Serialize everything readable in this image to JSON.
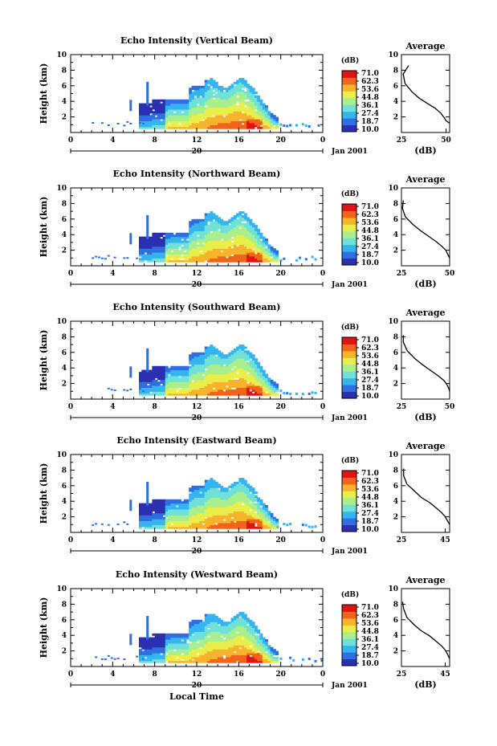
{
  "colorbar": {
    "unit": "(dB)",
    "levels": [
      "71.0",
      "62.3",
      "53.6",
      "44.8",
      "36.1",
      "27.4",
      "18.7",
      "10.0"
    ],
    "colors": [
      "#2b2fb0",
      "#2f6fe0",
      "#35b4ef",
      "#6fe1d8",
      "#a9ef8d",
      "#e9ee4a",
      "#f7b32c",
      "#f2641a",
      "#e01414"
    ]
  },
  "chart_data": [
    {
      "type": "heatmap",
      "title": "Echo Intensity (Vertical Beam)",
      "xlabel": "",
      "ylabel": "Height (km)",
      "xlim": [
        0,
        24
      ],
      "ylim": [
        0,
        10
      ],
      "xticks": [
        "0",
        "4",
        "8",
        "12",
        "16",
        "20",
        "0"
      ],
      "yticks": [
        "2",
        "4",
        "6",
        "8",
        "10"
      ],
      "date_label": "20",
      "date_suffix": "Jan 2001",
      "profile": {
        "title": "Average",
        "xlabel": "(dB)",
        "xlim": [
          25,
          52
        ],
        "xticks": [
          "25",
          "50"
        ],
        "points": [
          [
            29,
            8.6
          ],
          [
            26,
            7.5
          ],
          [
            27,
            6.3
          ],
          [
            31,
            5.2
          ],
          [
            35,
            4.4
          ],
          [
            39,
            3.8
          ],
          [
            44,
            3.1
          ],
          [
            47,
            2.5
          ],
          [
            49,
            1.9
          ],
          [
            50,
            1.5
          ],
          [
            52,
            1.2
          ]
        ]
      }
    },
    {
      "type": "heatmap",
      "title": "Echo Intensity (Northward Beam)",
      "xlabel": "",
      "ylabel": "Height (km)",
      "xlim": [
        0,
        24
      ],
      "ylim": [
        0,
        10
      ],
      "xticks": [
        "0",
        "4",
        "8",
        "12",
        "16",
        "20",
        "0"
      ],
      "yticks": [
        "2",
        "4",
        "6",
        "8",
        "10"
      ],
      "date_label": "20",
      "date_suffix": "Jan 2001",
      "profile": {
        "title": "Average",
        "xlabel": "(dB)",
        "xlim": [
          25,
          50
        ],
        "xticks": [
          "25",
          "50"
        ],
        "points": [
          [
            26,
            8.4
          ],
          [
            25.5,
            7.4
          ],
          [
            27,
            6.3
          ],
          [
            31,
            5.3
          ],
          [
            35,
            4.5
          ],
          [
            39,
            3.8
          ],
          [
            43,
            3.1
          ],
          [
            46,
            2.5
          ],
          [
            48,
            2.0
          ],
          [
            49,
            1.5
          ],
          [
            50,
            1.0
          ]
        ]
      }
    },
    {
      "type": "heatmap",
      "title": "Echo Intensity (Southward Beam)",
      "xlabel": "",
      "ylabel": "Height (km)",
      "xlim": [
        0,
        24
      ],
      "ylim": [
        0,
        10
      ],
      "xticks": [
        "0",
        "4",
        "8",
        "12",
        "16",
        "20",
        "0"
      ],
      "yticks": [
        "2",
        "4",
        "6",
        "8",
        "10"
      ],
      "date_label": "20",
      "date_suffix": "Jan 2001",
      "profile": {
        "title": "Average",
        "xlabel": "(dB)",
        "xlim": [
          25,
          50
        ],
        "xticks": [
          "25",
          "50"
        ],
        "points": [
          [
            26,
            8.2
          ],
          [
            26,
            7.3
          ],
          [
            28,
            6.2
          ],
          [
            32,
            5.2
          ],
          [
            36,
            4.4
          ],
          [
            40,
            3.7
          ],
          [
            44,
            3.0
          ],
          [
            47,
            2.4
          ],
          [
            48.5,
            1.9
          ],
          [
            49.5,
            1.4
          ],
          [
            50,
            1.0
          ]
        ]
      }
    },
    {
      "type": "heatmap",
      "title": "Echo Intensity (Eastward Beam)",
      "xlabel": "",
      "ylabel": "Height (km)",
      "xlim": [
        0,
        24
      ],
      "ylim": [
        0,
        10
      ],
      "xticks": [
        "0",
        "4",
        "8",
        "12",
        "16",
        "20",
        "0"
      ],
      "yticks": [
        "2",
        "4",
        "6",
        "8",
        "10"
      ],
      "date_label": "20",
      "date_suffix": "Jan 2001",
      "profile": {
        "title": "Average",
        "xlabel": "",
        "xlim": [
          25,
          47
        ],
        "xticks": [
          "25",
          "45"
        ],
        "points": [
          [
            26,
            8.2
          ],
          [
            26,
            7.3
          ],
          [
            27.5,
            6.2
          ],
          [
            31,
            5.3
          ],
          [
            34,
            4.5
          ],
          [
            38,
            3.8
          ],
          [
            41,
            3.1
          ],
          [
            43.5,
            2.5
          ],
          [
            45,
            2.0
          ],
          [
            46,
            1.5
          ],
          [
            47,
            1.0
          ]
        ]
      }
    },
    {
      "type": "heatmap",
      "title": "Echo Intensity (Westward Beam)",
      "xlabel": "Local Time",
      "ylabel": "Height (km)",
      "xlim": [
        0,
        24
      ],
      "ylim": [
        0,
        10
      ],
      "xticks": [
        "0",
        "4",
        "8",
        "12",
        "16",
        "20",
        "0"
      ],
      "yticks": [
        "2",
        "4",
        "6",
        "8",
        "10"
      ],
      "date_label": "20",
      "date_suffix": "Jan 2001",
      "profile": {
        "title": "Average",
        "xlabel": "(dB)",
        "xlim": [
          25,
          47
        ],
        "xticks": [
          "25",
          "45"
        ],
        "points": [
          [
            25.5,
            8.3
          ],
          [
            26,
            7.4
          ],
          [
            27.5,
            6.3
          ],
          [
            31,
            5.3
          ],
          [
            34,
            4.6
          ],
          [
            38,
            3.9
          ],
          [
            41,
            3.2
          ],
          [
            43.5,
            2.6
          ],
          [
            45,
            2.1
          ],
          [
            46,
            1.6
          ],
          [
            47,
            1.0
          ]
        ]
      }
    }
  ]
}
